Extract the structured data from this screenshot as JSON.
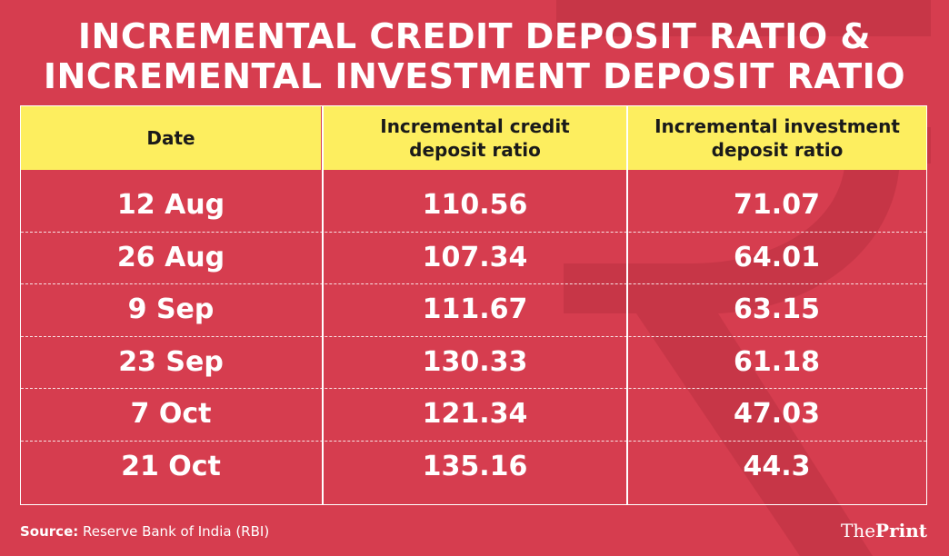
{
  "title_line1": "INCREMENTAL CREDIT DEPOSIT RATIO &",
  "title_line2": "INCREMENTAL INVESTMENT DEPOSIT RATIO",
  "colors": {
    "background": "#d63d4f",
    "header": "#fdee5f",
    "text": "#ffffff",
    "header_text": "#1a1a1a"
  },
  "chart_data": {
    "type": "table",
    "columns": [
      "Date",
      "Incremental credit deposit ratio",
      "Incremental investment deposit ratio"
    ],
    "rows": [
      [
        "12 Aug",
        "110.56",
        "71.07"
      ],
      [
        "26 Aug",
        "107.34",
        "64.01"
      ],
      [
        "9 Sep",
        "111.67",
        "63.15"
      ],
      [
        "23 Sep",
        "130.33",
        "61.18"
      ],
      [
        "7 Oct",
        "121.34",
        "47.03"
      ],
      [
        "21 Oct",
        "135.16",
        "44.3"
      ]
    ]
  },
  "header_lines": {
    "col2": [
      "Incremental credit",
      "deposit ratio"
    ],
    "col3": [
      "Incremental investment",
      "deposit ratio"
    ]
  },
  "source_label": "Source:",
  "source_text": " Reserve Bank of India (RBI)",
  "brand_part1": "The",
  "brand_part2": "Print",
  "background_icon": "rupee-icon"
}
